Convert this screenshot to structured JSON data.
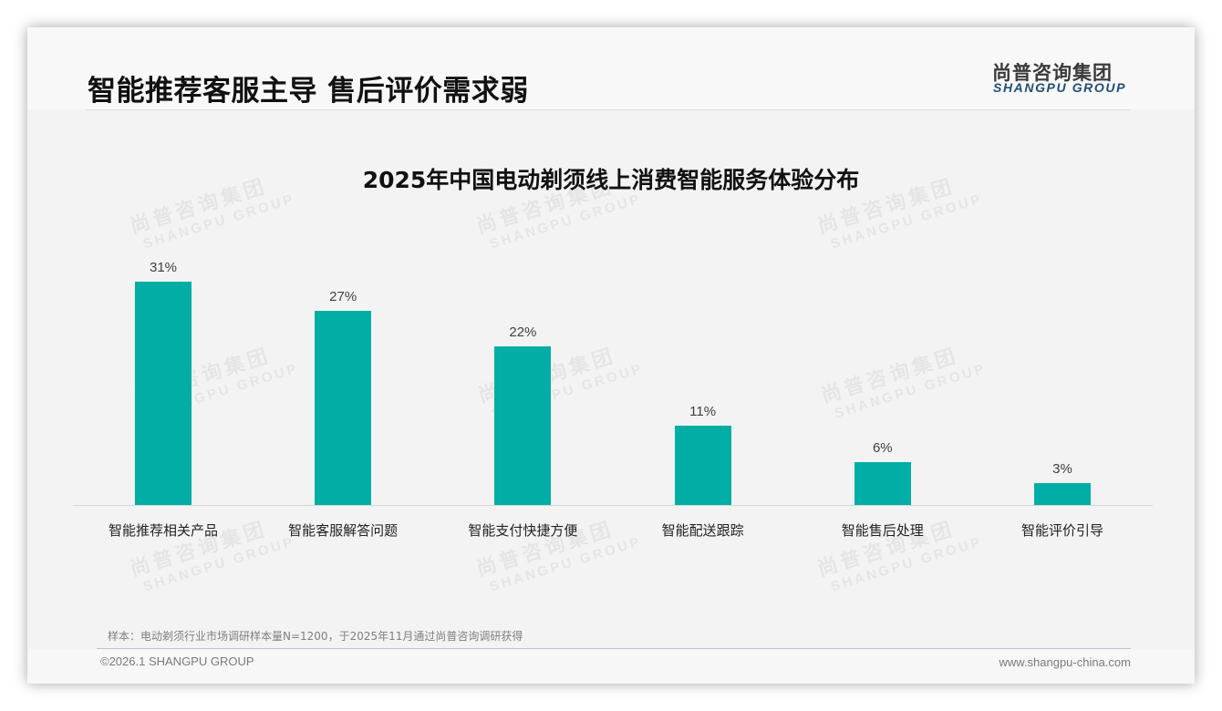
{
  "header": {
    "title": "智能推荐客服主导 售后评价需求弱",
    "logo_cn": "尚普咨询集团",
    "logo_en": "SHANGPU GROUP"
  },
  "watermark": {
    "cn": "尚普咨询集团",
    "en": "SHANGPU GROUP"
  },
  "colors": {
    "bar": "#00aea5",
    "title": "#111111",
    "logo_en": "#1f4e79"
  },
  "chart_data": {
    "type": "bar",
    "title": "2025年中国电动剃须线上消费智能服务体验分布",
    "categories": [
      "智能推荐相关产品",
      "智能客服解答问题",
      "智能支付快捷方便",
      "智能配送跟踪",
      "智能售后处理",
      "智能评价引导"
    ],
    "values": [
      31,
      27,
      22,
      11,
      6,
      3
    ],
    "value_labels": [
      "31%",
      "27%",
      "22%",
      "11%",
      "6%",
      "3%"
    ],
    "xlabel": "",
    "ylabel": "",
    "unit": "%",
    "ylim": [
      0,
      35
    ],
    "grid": false,
    "legend": "none"
  },
  "footer": {
    "footnote": "样本：电动剃须行业市场调研样本量N=1200，于2025年11月通过尚普咨询调研获得",
    "copyright": "©2026.1 SHANGPU GROUP",
    "website": "www.shangpu-china.com"
  }
}
